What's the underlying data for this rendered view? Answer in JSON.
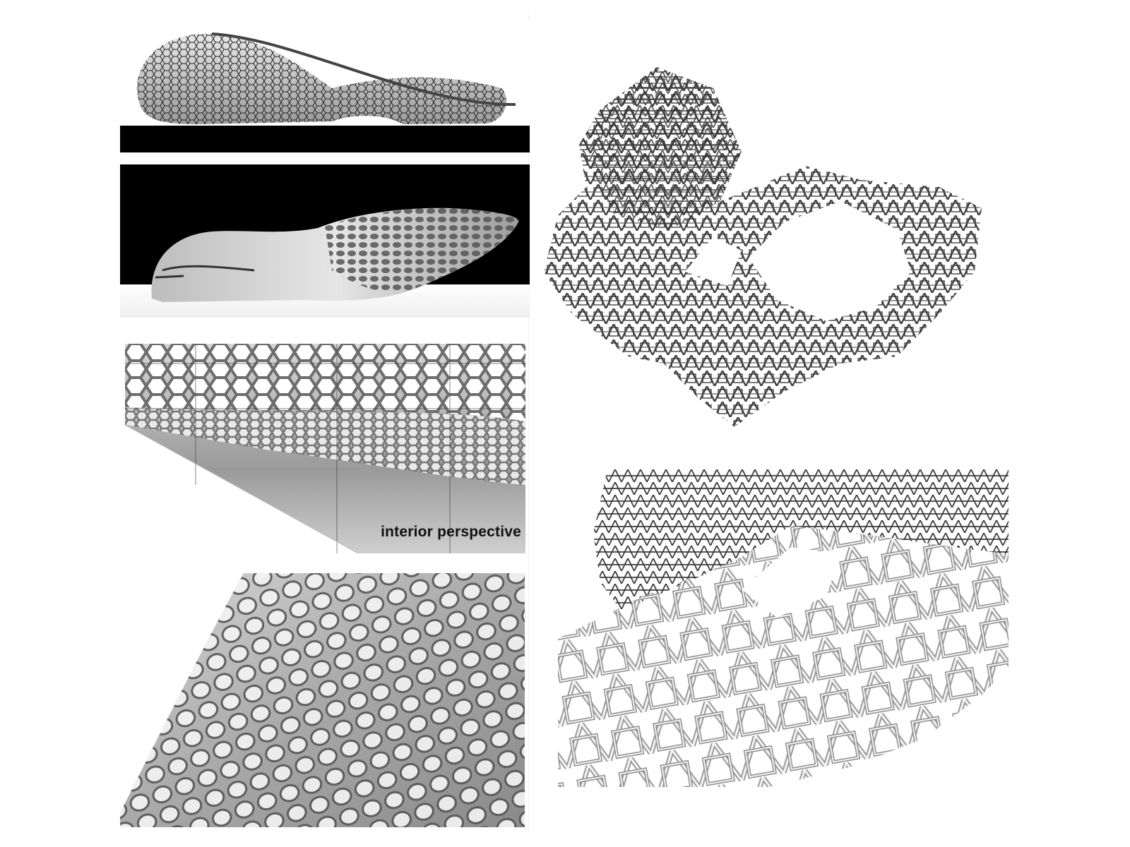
{
  "panels": {
    "interior_perspective": {
      "caption": "interior perspective"
    }
  },
  "colors": {
    "background": "#ffffff",
    "ink": "#111111",
    "render_grey": "#8a8a8a"
  }
}
